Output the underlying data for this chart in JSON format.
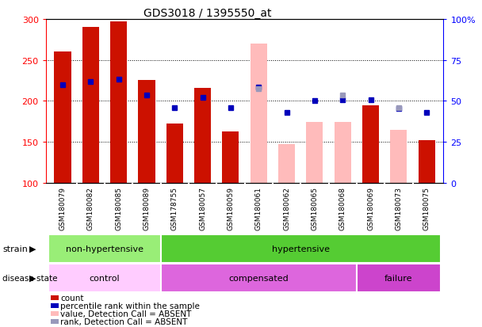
{
  "title": "GDS3018 / 1395550_at",
  "samples": [
    "GSM180079",
    "GSM180082",
    "GSM180085",
    "GSM180089",
    "GSM178755",
    "GSM180057",
    "GSM180059",
    "GSM180061",
    "GSM180062",
    "GSM180065",
    "GSM180068",
    "GSM180069",
    "GSM180073",
    "GSM180075"
  ],
  "count_values": [
    260,
    290,
    297,
    225,
    172,
    216,
    163,
    null,
    null,
    null,
    null,
    195,
    null,
    152
  ],
  "count_absent": [
    null,
    null,
    null,
    null,
    null,
    null,
    null,
    270,
    147,
    174,
    174,
    null,
    165,
    null
  ],
  "percentile_values": [
    220,
    224,
    226,
    207,
    192,
    204,
    192,
    217,
    186,
    200,
    201,
    201,
    191,
    186
  ],
  "percentile_absent": [
    null,
    null,
    null,
    null,
    null,
    null,
    null,
    215,
    null,
    null,
    207,
    null,
    192,
    null
  ],
  "ylim": [
    100,
    300
  ],
  "yticks_left": [
    100,
    150,
    200,
    250,
    300
  ],
  "yticks_right_labels": [
    "0",
    "25",
    "50",
    "75",
    "100%"
  ],
  "bar_width": 0.6,
  "bar_color_present": "#cc1100",
  "bar_color_absent": "#ffbbbb",
  "dot_color_present": "#0000bb",
  "dot_color_absent": "#9999bb",
  "strain_groups": [
    {
      "label": "non-hypertensive",
      "start": 0,
      "end": 3,
      "color": "#99ee77"
    },
    {
      "label": "hypertensive",
      "start": 4,
      "end": 13,
      "color": "#55cc33"
    }
  ],
  "disease_groups": [
    {
      "label": "control",
      "start": 0,
      "end": 3,
      "color": "#ffccff"
    },
    {
      "label": "compensated",
      "start": 4,
      "end": 10,
      "color": "#dd66dd"
    },
    {
      "label": "failure",
      "start": 11,
      "end": 13,
      "color": "#cc44cc"
    }
  ],
  "legend_items": [
    {
      "label": "count",
      "color": "#cc1100"
    },
    {
      "label": "percentile rank within the sample",
      "color": "#0000bb"
    },
    {
      "label": "value, Detection Call = ABSENT",
      "color": "#ffbbbb"
    },
    {
      "label": "rank, Detection Call = ABSENT",
      "color": "#9999bb"
    }
  ],
  "bg_color": "#ffffff",
  "tick_bg_color": "#d4d4d4"
}
